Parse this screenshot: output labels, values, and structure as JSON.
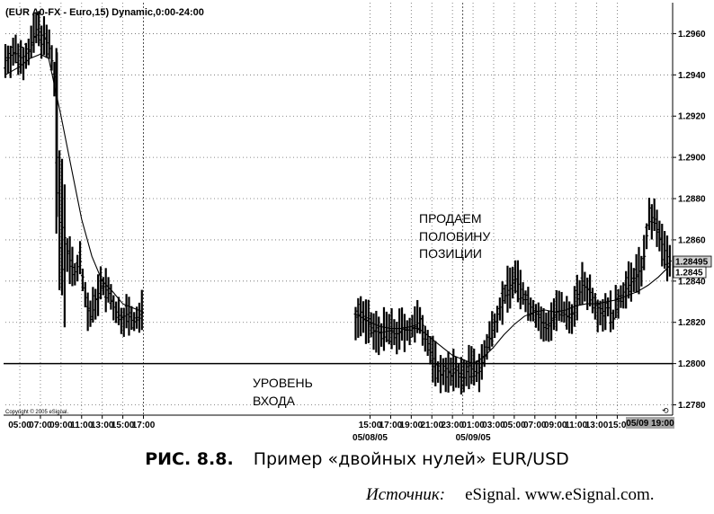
{
  "chart_data": {
    "type": "ohlc",
    "title": "(EUR A0-FX - Euro,15) Dynamic,0:00-24:00",
    "ylim": [
      1.2775,
      1.2975
    ],
    "y_ticks": [
      "1.2780",
      "1.2800",
      "1.2820",
      "1.2840",
      "1.2860",
      "1.2880",
      "1.2900",
      "1.2920",
      "1.2940",
      "1.2960"
    ],
    "x_ticks": [
      "05:00",
      "07:00",
      "09:00",
      "11:00",
      "13:00",
      "15:00",
      "17:00",
      "15:00",
      "17:00",
      "19:00",
      "21:00",
      "23:00",
      "01:00",
      "03:00",
      "05:00",
      "07:00",
      "09:00",
      "11:00",
      "13:00",
      "15:0"
    ],
    "x_tick_hours": [
      5,
      7,
      9,
      11,
      13,
      15,
      17,
      39,
      41,
      43,
      45,
      47,
      49,
      51,
      53,
      55,
      57,
      59,
      61,
      63
    ],
    "dates": [
      {
        "label": "05/08/05",
        "hour": 39
      },
      {
        "label": "05/09/05",
        "hour": 49
      }
    ],
    "last_time_label": "05/09 19:00",
    "x_range_hours": [
      3.6,
      68.2
    ],
    "session_separators_hours": [
      17,
      48
    ],
    "entry_level": 1.28,
    "price_labels": [
      "1.28495",
      "1.2845"
    ],
    "price_values": [
      1.28495,
      1.2845
    ],
    "annotations": {
      "sell": [
        "ПРОДАЕМ",
        "ПОЛОВИНУ",
        "ПОЗИЦИИ"
      ],
      "entry": [
        "УРОВЕНЬ",
        "ВХОДА"
      ]
    },
    "copyright": "Copyright © 2005 eSignal.",
    "close_path": [
      [
        3.6,
        1.2947
      ],
      [
        4.4,
        1.2951
      ],
      [
        5.2,
        1.2948
      ],
      [
        6.0,
        1.2953
      ],
      [
        6.6,
        1.2962
      ],
      [
        7.0,
        1.296
      ],
      [
        7.8,
        1.2954
      ],
      [
        8.3,
        1.2942
      ],
      [
        8.5,
        1.293
      ],
      [
        8.7,
        1.287
      ],
      [
        9.2,
        1.2865
      ],
      [
        9.7,
        1.2852
      ],
      [
        10.3,
        1.2844
      ],
      [
        10.9,
        1.285
      ],
      [
        11.4,
        1.283
      ],
      [
        11.9,
        1.2822
      ],
      [
        12.4,
        1.2832
      ],
      [
        13.0,
        1.2838
      ],
      [
        13.6,
        1.2834
      ],
      [
        14.2,
        1.2826
      ],
      [
        14.8,
        1.2822
      ],
      [
        15.4,
        1.2824
      ],
      [
        16.0,
        1.282
      ],
      [
        16.6,
        1.2822
      ],
      [
        17.0,
        1.2826
      ],
      [
        37.5,
        1.2822
      ],
      [
        38.1,
        1.2825
      ],
      [
        38.7,
        1.282
      ],
      [
        39.3,
        1.2816
      ],
      [
        40.0,
        1.2815
      ],
      [
        40.8,
        1.2816
      ],
      [
        41.5,
        1.2814
      ],
      [
        42.2,
        1.2817
      ],
      [
        42.8,
        1.2816
      ],
      [
        43.4,
        1.2818
      ],
      [
        43.9,
        1.2822
      ],
      [
        44.3,
        1.2815
      ],
      [
        44.8,
        1.2806
      ],
      [
        45.3,
        1.28
      ],
      [
        45.8,
        1.2794
      ],
      [
        46.3,
        1.2798
      ],
      [
        46.8,
        1.2794
      ],
      [
        47.4,
        1.2797
      ],
      [
        48.0,
        1.2792
      ],
      [
        48.6,
        1.2799
      ],
      [
        49.3,
        1.2795
      ],
      [
        50.0,
        1.2802
      ],
      [
        50.6,
        1.2812
      ],
      [
        51.2,
        1.2822
      ],
      [
        51.8,
        1.283
      ],
      [
        52.4,
        1.2836
      ],
      [
        53.0,
        1.2842
      ],
      [
        53.6,
        1.2836
      ],
      [
        54.2,
        1.283
      ],
      [
        54.8,
        1.2826
      ],
      [
        55.4,
        1.2822
      ],
      [
        56.0,
        1.2816
      ],
      [
        56.6,
        1.2822
      ],
      [
        57.2,
        1.2826
      ],
      [
        57.8,
        1.2824
      ],
      [
        58.4,
        1.2822
      ],
      [
        59.0,
        1.283
      ],
      [
        59.6,
        1.2838
      ],
      [
        60.2,
        1.2836
      ],
      [
        60.8,
        1.283
      ],
      [
        61.4,
        1.2824
      ],
      [
        62.0,
        1.2828
      ],
      [
        62.6,
        1.2822
      ],
      [
        63.2,
        1.2832
      ],
      [
        63.8,
        1.2836
      ],
      [
        64.4,
        1.284
      ],
      [
        65.0,
        1.2844
      ],
      [
        65.5,
        1.2848
      ],
      [
        66.0,
        1.2868
      ],
      [
        66.5,
        1.2872
      ],
      [
        67.0,
        1.2862
      ],
      [
        67.5,
        1.2856
      ],
      [
        68.0,
        1.285
      ],
      [
        68.2,
        1.28495
      ]
    ],
    "ma_path": [
      [
        3.6,
        1.294
      ],
      [
        5,
        1.2944
      ],
      [
        6,
        1.2948
      ],
      [
        7,
        1.295
      ],
      [
        7.8,
        1.2948
      ],
      [
        9,
        1.292
      ],
      [
        10,
        1.2895
      ],
      [
        11,
        1.287
      ],
      [
        12,
        1.2852
      ],
      [
        13,
        1.284
      ],
      [
        14,
        1.2835
      ],
      [
        15,
        1.2829
      ],
      [
        16,
        1.2827
      ],
      [
        17,
        1.2825
      ],
      [
        37.5,
        1.2824
      ],
      [
        38,
        1.2823
      ],
      [
        39,
        1.282
      ],
      [
        40,
        1.2818
      ],
      [
        41,
        1.2817
      ],
      [
        42,
        1.2817
      ],
      [
        43,
        1.2818
      ],
      [
        44,
        1.2816
      ],
      [
        45,
        1.2812
      ],
      [
        46,
        1.2808
      ],
      [
        47,
        1.2804
      ],
      [
        48,
        1.2802
      ],
      [
        49,
        1.28
      ],
      [
        50,
        1.2803
      ],
      [
        51,
        1.2808
      ],
      [
        52,
        1.2814
      ],
      [
        53,
        1.2819
      ],
      [
        54,
        1.2823
      ],
      [
        55,
        1.2825
      ],
      [
        56,
        1.2826
      ],
      [
        57,
        1.2825
      ],
      [
        58,
        1.2826
      ],
      [
        59,
        1.2828
      ],
      [
        60,
        1.2829
      ],
      [
        61,
        1.2829
      ],
      [
        62,
        1.283
      ],
      [
        63,
        1.2831
      ],
      [
        64,
        1.2833
      ],
      [
        65,
        1.2835
      ],
      [
        66,
        1.2838
      ],
      [
        67,
        1.2842
      ],
      [
        68,
        1.2847
      ],
      [
        68.2,
        1.2848
      ]
    ]
  },
  "caption": {
    "figure_number": "РИС. 8.8.",
    "title": "Пример «двойных нулей» EUR/USD"
  },
  "source": {
    "label": "Источник:",
    "text": "eSignal. www.eSignal.com."
  }
}
